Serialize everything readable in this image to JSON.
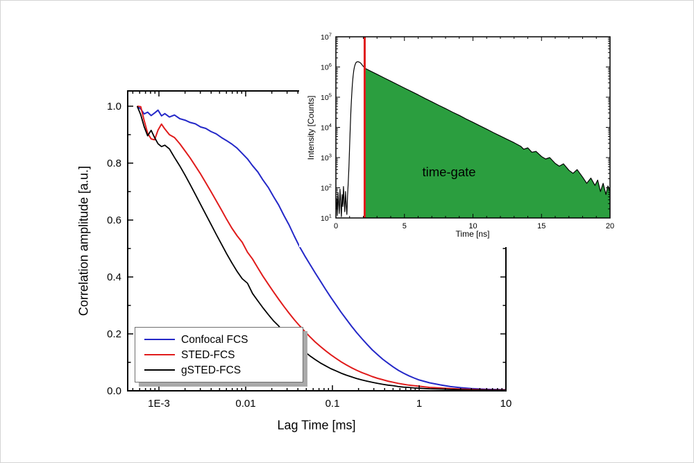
{
  "figure": {
    "background": "#ffffff"
  },
  "chart_data": [
    {
      "id": "fcs-correlation",
      "type": "line",
      "x_scale": "log",
      "xlabel": "Lag Time [ms]",
      "ylabel": "Correlation amplitude [a.u.]",
      "xlim": [
        0.00045,
        10
      ],
      "ylim": [
        0,
        1.054
      ],
      "grid": false,
      "legend_position": "bottom-left",
      "x_ticks": [
        {
          "label": "1E-3",
          "value": 0.001
        },
        {
          "label": "0.01",
          "value": 0.01
        },
        {
          "label": "0.1",
          "value": 0.1
        },
        {
          "label": "1",
          "value": 1
        },
        {
          "label": "10",
          "value": 10
        }
      ],
      "y_ticks": [
        {
          "label": "0.0",
          "value": 0.0
        },
        {
          "label": "0.2",
          "value": 0.2
        },
        {
          "label": "0.4",
          "value": 0.4
        },
        {
          "label": "0.6",
          "value": 0.6
        },
        {
          "label": "0.8",
          "value": 0.8
        },
        {
          "label": "1.0",
          "value": 1.0
        }
      ],
      "x_ms": [
        0.000562,
        0.000617,
        0.000676,
        0.000741,
        0.000813,
        0.000891,
        0.000977,
        0.00107,
        0.00117,
        0.00132,
        0.00151,
        0.00174,
        0.002,
        0.00229,
        0.00263,
        0.00302,
        0.00347,
        0.00398,
        0.00457,
        0.00525,
        0.00603,
        0.00692,
        0.00794,
        0.00912,
        0.0105,
        0.012,
        0.0138,
        0.0158,
        0.0182,
        0.0209,
        0.024,
        0.0275,
        0.0316,
        0.0363,
        0.0417,
        0.0479,
        0.055,
        0.0631,
        0.0724,
        0.0832,
        0.0955,
        0.11,
        0.126,
        0.145,
        0.166,
        0.191,
        0.219,
        0.251,
        0.288,
        0.331,
        0.38,
        0.437,
        0.501,
        0.575,
        0.661,
        0.759,
        0.871,
        1.0,
        1.32,
        1.74,
        2.29,
        3.02,
        3.98,
        5.25,
        6.92,
        10.0
      ],
      "series": [
        {
          "name": "Confocal FCS",
          "color": "#2428c8",
          "values": [
            1.0,
            0.99,
            0.973,
            0.979,
            0.967,
            0.976,
            0.986,
            0.966,
            0.974,
            0.962,
            0.969,
            0.956,
            0.951,
            0.943,
            0.938,
            0.927,
            0.922,
            0.911,
            0.903,
            0.89,
            0.879,
            0.867,
            0.853,
            0.834,
            0.815,
            0.791,
            0.769,
            0.741,
            0.715,
            0.683,
            0.653,
            0.617,
            0.583,
            0.544,
            0.507,
            0.475,
            0.445,
            0.415,
            0.386,
            0.357,
            0.329,
            0.302,
            0.276,
            0.251,
            0.227,
            0.204,
            0.183,
            0.163,
            0.144,
            0.127,
            0.111,
            0.097,
            0.084,
            0.072,
            0.062,
            0.053,
            0.045,
            0.038,
            0.028,
            0.021,
            0.015,
            0.011,
            0.008,
            0.006,
            0.005,
            0.004
          ]
        },
        {
          "name": "STED-FCS",
          "color": "#e01b1b",
          "values": [
            1.0,
            0.998,
            0.95,
            0.905,
            0.885,
            0.882,
            0.916,
            0.937,
            0.92,
            0.9,
            0.89,
            0.868,
            0.843,
            0.818,
            0.79,
            0.762,
            0.731,
            0.7,
            0.668,
            0.636,
            0.603,
            0.572,
            0.545,
            0.522,
            0.487,
            0.463,
            0.432,
            0.403,
            0.375,
            0.348,
            0.322,
            0.297,
            0.273,
            0.25,
            0.229,
            0.209,
            0.19,
            0.172,
            0.156,
            0.141,
            0.127,
            0.114,
            0.102,
            0.091,
            0.081,
            0.072,
            0.064,
            0.057,
            0.05,
            0.044,
            0.039,
            0.034,
            0.03,
            0.026,
            0.023,
            0.02,
            0.018,
            0.016,
            0.012,
            0.01,
            0.008,
            0.006,
            0.005,
            0.004,
            0.003,
            0.003
          ]
        },
        {
          "name": "gSTED-FCS",
          "color": "#000000",
          "values": [
            1.0,
            0.97,
            0.928,
            0.896,
            0.915,
            0.89,
            0.868,
            0.858,
            0.863,
            0.85,
            0.82,
            0.79,
            0.758,
            0.725,
            0.69,
            0.655,
            0.62,
            0.585,
            0.55,
            0.516,
            0.482,
            0.45,
            0.42,
            0.394,
            0.378,
            0.342,
            0.316,
            0.292,
            0.268,
            0.246,
            0.228,
            0.204,
            0.185,
            0.168,
            0.152,
            0.137,
            0.123,
            0.11,
            0.098,
            0.088,
            0.078,
            0.07,
            0.062,
            0.055,
            0.049,
            0.043,
            0.038,
            0.034,
            0.03,
            0.026,
            0.023,
            0.02,
            0.018,
            0.015,
            0.013,
            0.012,
            0.01,
            0.009,
            0.007,
            0.006,
            0.005,
            0.004,
            0.003,
            0.003,
            0.002,
            0.002
          ]
        }
      ]
    },
    {
      "id": "decay-inset",
      "type": "area",
      "y_scale": "log",
      "xlabel": "Time [ns]",
      "ylabel": "Intensity [Counts]",
      "xlim": [
        0,
        20
      ],
      "ylim": [
        10,
        10000000
      ],
      "x_ticks": [
        0,
        5,
        10,
        15,
        20
      ],
      "y_tick_exponents": [
        1,
        2,
        3,
        4,
        5,
        6,
        7
      ],
      "annotation": "time-gate",
      "decay_color": "#000000",
      "gate": {
        "start_ns": 2.1,
        "end_ns": 20,
        "fill_color": "#2b9e3f",
        "line_color": "#e01b1b"
      },
      "points": [
        [
          0,
          20
        ],
        [
          0.05,
          45
        ],
        [
          0.1,
          12
        ],
        [
          0.15,
          70
        ],
        [
          0.2,
          28
        ],
        [
          0.25,
          14
        ],
        [
          0.3,
          90
        ],
        [
          0.35,
          33
        ],
        [
          0.4,
          11
        ],
        [
          0.45,
          60
        ],
        [
          0.5,
          24
        ],
        [
          0.55,
          110
        ],
        [
          0.6,
          38
        ],
        [
          0.65,
          16
        ],
        [
          0.7,
          75
        ],
        [
          0.75,
          28
        ],
        [
          0.8,
          13
        ],
        [
          0.85,
          55
        ],
        [
          0.9,
          150
        ],
        [
          0.95,
          500
        ],
        [
          1,
          2500
        ],
        [
          1.05,
          10000
        ],
        [
          1.1,
          40000
        ],
        [
          1.15,
          110000
        ],
        [
          1.2,
          260000
        ],
        [
          1.25,
          480000
        ],
        [
          1.3,
          750000
        ],
        [
          1.35,
          1000000
        ],
        [
          1.4,
          1200000
        ],
        [
          1.45,
          1350000
        ],
        [
          1.5,
          1450000
        ],
        [
          1.6,
          1500000
        ],
        [
          1.7,
          1450000
        ],
        [
          1.8,
          1350000
        ],
        [
          1.9,
          1200000
        ],
        [
          2,
          1050000
        ],
        [
          2.1,
          920000
        ],
        [
          2.5,
          740000
        ],
        [
          3,
          570000
        ],
        [
          3.5,
          440000
        ],
        [
          4,
          340000
        ],
        [
          4.5,
          260000
        ],
        [
          5,
          200000
        ],
        [
          5.5,
          155000
        ],
        [
          6,
          120000
        ],
        [
          6.5,
          91000
        ],
        [
          7,
          70000
        ],
        [
          7.5,
          54000
        ],
        [
          8,
          42000
        ],
        [
          8.5,
          32000
        ],
        [
          9,
          25000
        ],
        [
          9.5,
          19000
        ],
        [
          10,
          14700
        ],
        [
          10.5,
          11300
        ],
        [
          11,
          8700
        ],
        [
          11.5,
          6700
        ],
        [
          12,
          5200
        ],
        [
          12.5,
          4000
        ],
        [
          13,
          3100
        ],
        [
          13.5,
          2350
        ],
        [
          13.7,
          1900
        ],
        [
          14,
          2100
        ],
        [
          14.3,
          1500
        ],
        [
          14.6,
          1600
        ],
        [
          15,
          1080
        ],
        [
          15.3,
          900
        ],
        [
          15.6,
          1000
        ],
        [
          16,
          640
        ],
        [
          16.3,
          520
        ],
        [
          16.6,
          620
        ],
        [
          17,
          380
        ],
        [
          17.3,
          300
        ],
        [
          17.6,
          400
        ],
        [
          18,
          225
        ],
        [
          18.3,
          140
        ],
        [
          18.6,
          210
        ],
        [
          18.9,
          120
        ],
        [
          19.1,
          180
        ],
        [
          19.3,
          75
        ],
        [
          19.5,
          140
        ],
        [
          19.7,
          60
        ],
        [
          19.85,
          115
        ],
        [
          20,
          80
        ]
      ]
    }
  ]
}
